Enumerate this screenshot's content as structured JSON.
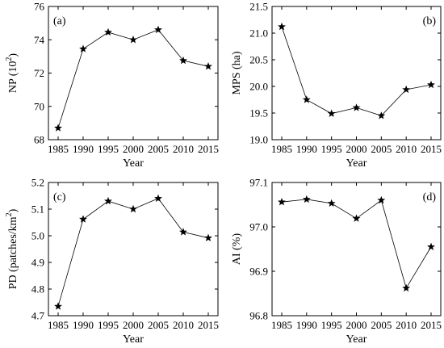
{
  "chart_data": [
    {
      "type": "line",
      "panel": "(a)",
      "x": [
        1985,
        1990,
        1995,
        2000,
        2005,
        2010,
        2015
      ],
      "x_ticks": [
        "1985",
        "1990",
        "1995",
        "2000",
        "2005",
        "2010",
        "2015"
      ],
      "values": [
        68.7,
        73.45,
        74.45,
        74.0,
        74.6,
        72.75,
        72.4
      ],
      "xlabel": "Year",
      "ylabel_base": "NP (10",
      "ylabel_sup": "2",
      "ylabel_end": ")",
      "ylim": [
        68,
        76
      ],
      "y_ticks": [
        "68",
        "70",
        "72",
        "74",
        "76"
      ],
      "marker": "star"
    },
    {
      "type": "line",
      "panel": "(b)",
      "x": [
        1985,
        1990,
        1995,
        2000,
        2005,
        2010,
        2015
      ],
      "x_ticks": [
        "1985",
        "1990",
        "1995",
        "2000",
        "2005",
        "2010",
        "2015"
      ],
      "values": [
        21.12,
        19.75,
        19.49,
        19.6,
        19.45,
        19.94,
        20.03
      ],
      "xlabel": "Year",
      "ylabel_base": "MPS (ha)",
      "ylabel_sup": "",
      "ylabel_end": "",
      "ylim": [
        19.0,
        21.5
      ],
      "y_ticks": [
        "19.0",
        "19.5",
        "20.0",
        "20.5",
        "21.0",
        "21.5"
      ],
      "marker": "star"
    },
    {
      "type": "line",
      "panel": "(c)",
      "x": [
        1985,
        1990,
        1995,
        2000,
        2005,
        2010,
        2015
      ],
      "x_ticks": [
        "1985",
        "1990",
        "1995",
        "2000",
        "2005",
        "2010",
        "2015"
      ],
      "values": [
        4.735,
        5.062,
        5.13,
        5.1,
        5.14,
        5.014,
        4.992
      ],
      "xlabel": "Year",
      "ylabel_base": "PD (patches/km",
      "ylabel_sup": "2",
      "ylabel_end": ")",
      "ylim": [
        4.7,
        5.2
      ],
      "y_ticks": [
        "4.7",
        "4.8",
        "4.9",
        "5.0",
        "5.1",
        "5.2"
      ],
      "marker": "star"
    },
    {
      "type": "line",
      "panel": "(d)",
      "x": [
        1985,
        1990,
        1995,
        2000,
        2005,
        2010,
        2015
      ],
      "x_ticks": [
        "1985",
        "1990",
        "1995",
        "2000",
        "2005",
        "2010",
        "2015"
      ],
      "values": [
        97.056,
        97.062,
        97.053,
        97.019,
        97.06,
        96.862,
        96.955
      ],
      "xlabel": "Year",
      "ylabel_base": "AI (%)",
      "ylabel_sup": "",
      "ylabel_end": "",
      "ylim": [
        96.8,
        97.1
      ],
      "y_ticks": [
        "96.8",
        "96.9",
        "97.0",
        "97.1"
      ],
      "marker": "star"
    }
  ]
}
